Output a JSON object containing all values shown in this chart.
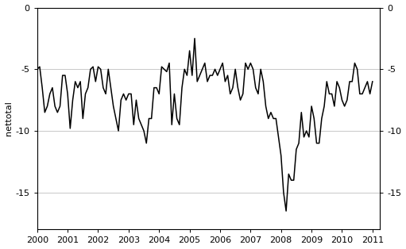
{
  "ylabel": "nettotal",
  "ylim": [
    -18,
    0
  ],
  "yticks": [
    0,
    -5,
    -10,
    -15
  ],
  "xlim": [
    2000,
    2011.25
  ],
  "xticks": [
    2000,
    2001,
    2002,
    2003,
    2004,
    2005,
    2006,
    2007,
    2008,
    2009,
    2010,
    2011
  ],
  "line_color": "#000000",
  "background_color": "#ffffff",
  "grid_color": "#c8c8c8",
  "line_width": 1.1,
  "values": [
    -5.0,
    -4.8,
    -6.5,
    -8.5,
    -8.0,
    -7.0,
    -6.5,
    -8.0,
    -8.5,
    -8.0,
    -5.5,
    -5.5,
    -7.0,
    -9.8,
    -7.5,
    -6.0,
    -6.5,
    -6.0,
    -9.0,
    -7.0,
    -6.5,
    -5.0,
    -4.8,
    -6.0,
    -4.8,
    -5.0,
    -6.5,
    -7.0,
    -5.0,
    -6.5,
    -8.0,
    -9.0,
    -10.0,
    -7.5,
    -7.0,
    -7.5,
    -7.0,
    -7.0,
    -9.5,
    -7.5,
    -9.0,
    -9.5,
    -10.0,
    -11.0,
    -9.0,
    -9.0,
    -6.5,
    -6.5,
    -7.0,
    -4.8,
    -5.0,
    -5.2,
    -4.5,
    -9.5,
    -7.0,
    -9.0,
    -9.5,
    -6.5,
    -5.0,
    -5.5,
    -3.5,
    -5.5,
    -2.5,
    -6.0,
    -5.5,
    -5.0,
    -4.5,
    -6.0,
    -5.5,
    -5.5,
    -5.0,
    -5.5,
    -5.0,
    -4.5,
    -6.0,
    -5.5,
    -7.0,
    -6.5,
    -5.0,
    -6.5,
    -7.5,
    -7.0,
    -4.5,
    -5.0,
    -4.5,
    -5.0,
    -6.5,
    -7.0,
    -5.0,
    -6.0,
    -8.0,
    -9.0,
    -8.5,
    -9.0,
    -9.0,
    -10.5,
    -12.0,
    -15.0,
    -16.5,
    -13.5,
    -14.0,
    -14.0,
    -11.5,
    -11.0,
    -8.5,
    -10.5,
    -10.0,
    -10.5,
    -8.0,
    -9.0,
    -11.0,
    -11.0,
    -9.0,
    -8.0,
    -6.0,
    -7.0,
    -7.0,
    -8.0,
    -6.0,
    -6.5,
    -7.5,
    -8.0,
    -7.5,
    -6.0,
    -6.0,
    -4.5,
    -5.0,
    -7.0,
    -7.0,
    -6.5,
    -6.0,
    -7.0,
    -6.0
  ]
}
